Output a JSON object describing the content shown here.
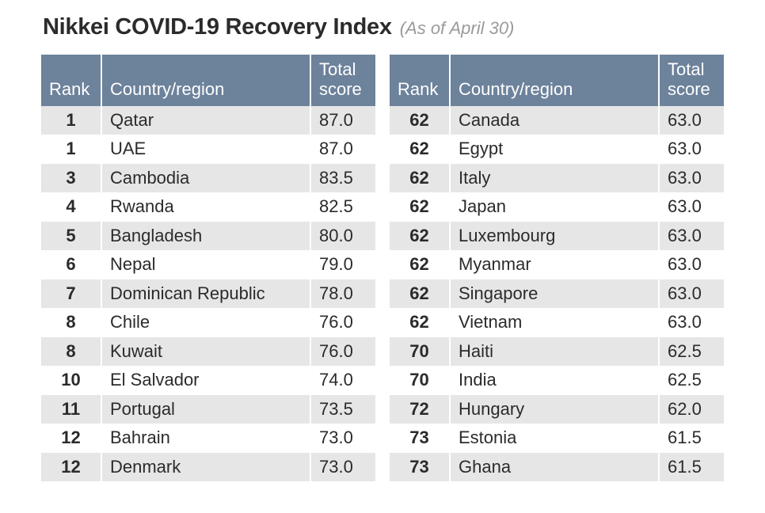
{
  "header": {
    "title": "Nikkei COVID-19 Recovery Index",
    "subtitle": "(As of April 30)"
  },
  "table": {
    "columns": {
      "rank": "Rank",
      "country": "Country/region",
      "score": "Total\nscore"
    },
    "header_bg": "#6d829b",
    "header_fg": "#ffffff",
    "row_alt_bg": "#e6e6e6",
    "row_bg": "#ffffff",
    "left": [
      {
        "rank": "1",
        "country": "Qatar",
        "score": "87.0"
      },
      {
        "rank": "1",
        "country": "UAE",
        "score": "87.0"
      },
      {
        "rank": "3",
        "country": "Cambodia",
        "score": "83.5"
      },
      {
        "rank": "4",
        "country": "Rwanda",
        "score": "82.5"
      },
      {
        "rank": "5",
        "country": "Bangladesh",
        "score": "80.0"
      },
      {
        "rank": "6",
        "country": "Nepal",
        "score": "79.0"
      },
      {
        "rank": "7",
        "country": "Dominican Republic",
        "score": "78.0"
      },
      {
        "rank": "8",
        "country": "Chile",
        "score": "76.0"
      },
      {
        "rank": "8",
        "country": "Kuwait",
        "score": "76.0"
      },
      {
        "rank": "10",
        "country": "El Salvador",
        "score": "74.0"
      },
      {
        "rank": "11",
        "country": "Portugal",
        "score": "73.5"
      },
      {
        "rank": "12",
        "country": "Bahrain",
        "score": "73.0"
      },
      {
        "rank": "12",
        "country": "Denmark",
        "score": "73.0"
      }
    ],
    "right": [
      {
        "rank": "62",
        "country": "Canada",
        "score": "63.0"
      },
      {
        "rank": "62",
        "country": "Egypt",
        "score": "63.0"
      },
      {
        "rank": "62",
        "country": "Italy",
        "score": "63.0"
      },
      {
        "rank": "62",
        "country": "Japan",
        "score": "63.0"
      },
      {
        "rank": "62",
        "country": "Luxembourg",
        "score": "63.0"
      },
      {
        "rank": "62",
        "country": "Myanmar",
        "score": "63.0"
      },
      {
        "rank": "62",
        "country": "Singapore",
        "score": "63.0"
      },
      {
        "rank": "62",
        "country": "Vietnam",
        "score": "63.0"
      },
      {
        "rank": "70",
        "country": "Haiti",
        "score": "62.5"
      },
      {
        "rank": "70",
        "country": "India",
        "score": "62.5"
      },
      {
        "rank": "72",
        "country": "Hungary",
        "score": "62.0"
      },
      {
        "rank": "73",
        "country": "Estonia",
        "score": "61.5"
      },
      {
        "rank": "73",
        "country": "Ghana",
        "score": "61.5"
      }
    ]
  }
}
